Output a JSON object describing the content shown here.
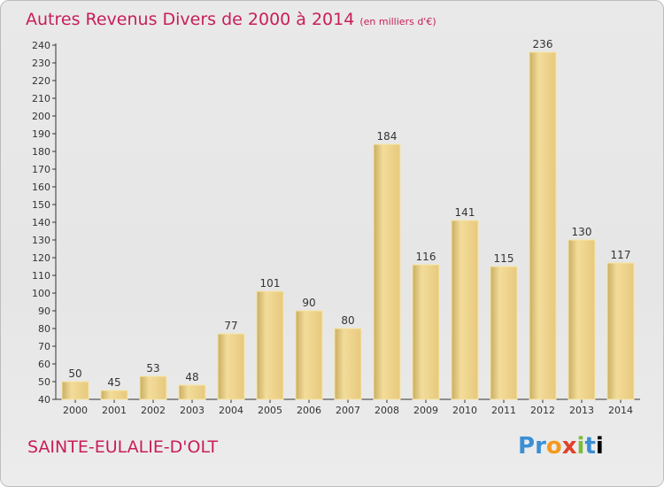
{
  "chart_data": {
    "type": "bar",
    "title": "Autres Revenus Divers de 2000 à 2014",
    "subtitle": "(en milliers d'€)",
    "categories": [
      "2000",
      "2001",
      "2002",
      "2003",
      "2004",
      "2005",
      "2006",
      "2007",
      "2008",
      "2009",
      "2010",
      "2011",
      "2012",
      "2013",
      "2014"
    ],
    "values": [
      50,
      45,
      53,
      48,
      77,
      101,
      90,
      80,
      184,
      116,
      141,
      115,
      236,
      130,
      117
    ],
    "ylim": [
      40,
      240
    ],
    "yticks": [
      40,
      50,
      60,
      70,
      80,
      90,
      100,
      110,
      120,
      130,
      140,
      150,
      160,
      170,
      180,
      190,
      200,
      210,
      220,
      230,
      240
    ],
    "grid": false,
    "bar_color": "#ecd08a"
  },
  "footer": {
    "location": "SAINTE-EULALIE-D'OLT",
    "brand_letters": [
      "P",
      "r",
      "o",
      "x",
      "i",
      "t",
      "i"
    ]
  }
}
